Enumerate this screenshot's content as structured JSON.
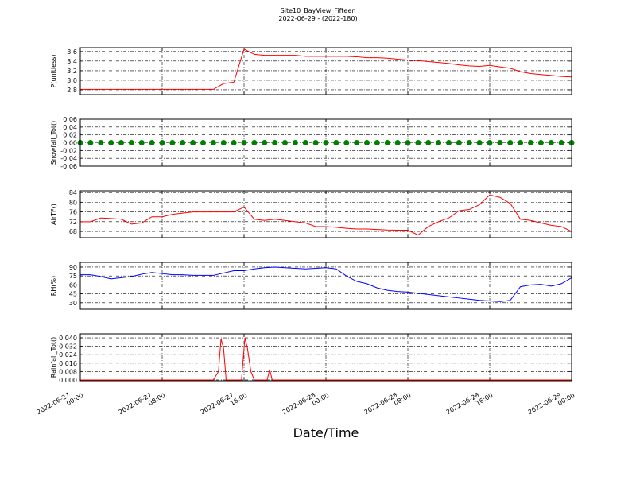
{
  "title": "Site10_BayView_Fifteen",
  "subtitle": "2022-06-29 - (2022-180)",
  "x_axis": {
    "label": "Date/Time",
    "xlim": [
      "2022-06-27 00:00",
      "2022-06-29 00:00"
    ],
    "xticks": [
      "2022-06-27 00:00",
      "2022-06-27 08:00",
      "2022-06-27 16:00",
      "2022-06-28 00:00",
      "2022-06-28 08:00",
      "2022-06-28 16:00",
      "2022-06-29 00:00"
    ]
  },
  "chart_data": [
    {
      "type": "line",
      "ylabel": "P(unitless)",
      "ylim": [
        2.7,
        3.68
      ],
      "yticks": [
        {
          "value": 2.8,
          "label": "2.8"
        },
        {
          "value": 3.0,
          "label": "3.0"
        },
        3.2,
        3.4,
        3.6
      ],
      "grid": true,
      "x": [
        "2022-06-27 00:00",
        "2022-06-27 01:00",
        "2022-06-27 02:00",
        "2022-06-27 03:00",
        "2022-06-27 04:00",
        "2022-06-27 05:00",
        "2022-06-27 06:00",
        "2022-06-27 07:00",
        "2022-06-27 08:00",
        "2022-06-27 09:00",
        "2022-06-27 10:00",
        "2022-06-27 11:00",
        "2022-06-27 12:00",
        "2022-06-27 13:00",
        "2022-06-27 14:00",
        "2022-06-27 15:00",
        "2022-06-27 16:00",
        "2022-06-27 17:00",
        "2022-06-27 18:00",
        "2022-06-27 19:00",
        "2022-06-27 20:00",
        "2022-06-27 21:00",
        "2022-06-27 22:00",
        "2022-06-27 23:00",
        "2022-06-28 00:00",
        "2022-06-28 01:00",
        "2022-06-28 02:00",
        "2022-06-28 03:00",
        "2022-06-28 04:00",
        "2022-06-28 05:00",
        "2022-06-28 06:00",
        "2022-06-28 07:00",
        "2022-06-28 08:00",
        "2022-06-28 09:00",
        "2022-06-28 10:00",
        "2022-06-28 11:00",
        "2022-06-28 12:00",
        "2022-06-28 13:00",
        "2022-06-28 14:00",
        "2022-06-28 15:00",
        "2022-06-28 16:00",
        "2022-06-28 17:00",
        "2022-06-28 18:00",
        "2022-06-28 19:00",
        "2022-06-28 20:00",
        "2022-06-28 21:00",
        "2022-06-28 22:00",
        "2022-06-28 23:00",
        "2022-06-29 00:00"
      ],
      "series": [
        {
          "color": "#ff0000",
          "values": [
            2.81,
            2.81,
            2.81,
            2.81,
            2.81,
            2.81,
            2.81,
            2.81,
            2.81,
            2.81,
            2.81,
            2.81,
            2.81,
            2.81,
            2.93,
            2.96,
            3.65,
            3.54,
            3.52,
            3.52,
            3.52,
            3.52,
            3.5,
            3.5,
            3.5,
            3.5,
            3.5,
            3.49,
            3.47,
            3.47,
            3.46,
            3.44,
            3.42,
            3.41,
            3.39,
            3.37,
            3.35,
            3.32,
            3.3,
            3.29,
            3.31,
            3.28,
            3.25,
            3.18,
            3.14,
            3.12,
            3.1,
            3.08,
            3.07
          ]
        }
      ]
    },
    {
      "type": "scatter",
      "ylabel": "Snowfall_Tot()",
      "ylim": [
        -0.06,
        0.06
      ],
      "yticks": [
        -0.06,
        -0.04,
        -0.02,
        {
          "value": 0,
          "label": "0.00"
        },
        0.02,
        0.04,
        0.06
      ],
      "grid": true,
      "x": [
        "2022-06-27 00:00",
        "2022-06-27 01:00",
        "2022-06-27 02:00",
        "2022-06-27 03:00",
        "2022-06-27 04:00",
        "2022-06-27 05:00",
        "2022-06-27 06:00",
        "2022-06-27 07:00",
        "2022-06-27 08:00",
        "2022-06-27 09:00",
        "2022-06-27 10:00",
        "2022-06-27 11:00",
        "2022-06-27 12:00",
        "2022-06-27 13:00",
        "2022-06-27 14:00",
        "2022-06-27 15:00",
        "2022-06-27 16:00",
        "2022-06-27 17:00",
        "2022-06-27 18:00",
        "2022-06-27 19:00",
        "2022-06-27 20:00",
        "2022-06-27 21:00",
        "2022-06-27 22:00",
        "2022-06-27 23:00",
        "2022-06-28 00:00",
        "2022-06-28 01:00",
        "2022-06-28 02:00",
        "2022-06-28 03:00",
        "2022-06-28 04:00",
        "2022-06-28 05:00",
        "2022-06-28 06:00",
        "2022-06-28 07:00",
        "2022-06-28 08:00",
        "2022-06-28 09:00",
        "2022-06-28 10:00",
        "2022-06-28 11:00",
        "2022-06-28 12:00",
        "2022-06-28 13:00",
        "2022-06-28 14:00",
        "2022-06-28 15:00",
        "2022-06-28 16:00",
        "2022-06-28 17:00",
        "2022-06-28 18:00",
        "2022-06-28 19:00",
        "2022-06-28 20:00",
        "2022-06-28 21:00",
        "2022-06-28 22:00",
        "2022-06-28 23:00",
        "2022-06-29 00:00"
      ],
      "series": [
        {
          "color": "#008000",
          "values": [
            0,
            0,
            0,
            0,
            0,
            0,
            0,
            0,
            0,
            0,
            0,
            0,
            0,
            0,
            0,
            0,
            0,
            0,
            0,
            0,
            0,
            0,
            0,
            0,
            0,
            0,
            0,
            0,
            0,
            0,
            0,
            0,
            0,
            0,
            0,
            0,
            0,
            0,
            0,
            0,
            0,
            0,
            0,
            0,
            0,
            0,
            0,
            0,
            0
          ]
        }
      ]
    },
    {
      "type": "line",
      "ylabel": "AirTF()",
      "ylim": [
        65.4,
        84.7
      ],
      "yticks": [
        68,
        72,
        76,
        80,
        84
      ],
      "grid": true,
      "x": [
        "2022-06-27 00:00",
        "2022-06-27 01:00",
        "2022-06-27 02:00",
        "2022-06-27 03:00",
        "2022-06-27 04:00",
        "2022-06-27 05:00",
        "2022-06-27 06:00",
        "2022-06-27 07:00",
        "2022-06-27 08:00",
        "2022-06-27 09:00",
        "2022-06-27 10:00",
        "2022-06-27 11:00",
        "2022-06-27 12:00",
        "2022-06-27 13:00",
        "2022-06-27 14:00",
        "2022-06-27 15:00",
        "2022-06-27 16:00",
        "2022-06-27 17:00",
        "2022-06-27 18:00",
        "2022-06-27 19:00",
        "2022-06-27 20:00",
        "2022-06-27 21:00",
        "2022-06-27 22:00",
        "2022-06-27 23:00",
        "2022-06-28 00:00",
        "2022-06-28 01:00",
        "2022-06-28 02:00",
        "2022-06-28 03:00",
        "2022-06-28 04:00",
        "2022-06-28 05:00",
        "2022-06-28 06:00",
        "2022-06-28 07:00",
        "2022-06-28 08:00",
        "2022-06-28 09:00",
        "2022-06-28 10:00",
        "2022-06-28 11:00",
        "2022-06-28 12:00",
        "2022-06-28 13:00",
        "2022-06-28 14:00",
        "2022-06-28 15:00",
        "2022-06-28 16:00",
        "2022-06-28 17:00",
        "2022-06-28 18:00",
        "2022-06-28 19:00",
        "2022-06-28 20:00",
        "2022-06-28 21:00",
        "2022-06-28 22:00",
        "2022-06-28 23:00",
        "2022-06-29 00:00"
      ],
      "series": [
        {
          "color": "#ff0000",
          "values": [
            72,
            72,
            73.5,
            73.3,
            73,
            71,
            71.5,
            74,
            74,
            75,
            75.5,
            76,
            76,
            76,
            76,
            76,
            78,
            73,
            72.5,
            73,
            72.5,
            72,
            71.5,
            70,
            70,
            69.7,
            69.3,
            69,
            69,
            68.8,
            68.6,
            68.5,
            68.5,
            66.5,
            70,
            72,
            73.5,
            76.5,
            77,
            79,
            83,
            82,
            79.5,
            73,
            72.5,
            71.5,
            70.5,
            70,
            68
          ]
        }
      ]
    },
    {
      "type": "line",
      "ylabel": "RH(%)",
      "ylim": [
        19,
        98
      ],
      "yticks": [
        30,
        45,
        60,
        75,
        90
      ],
      "grid": true,
      "x": [
        "2022-06-27 00:00",
        "2022-06-27 01:00",
        "2022-06-27 02:00",
        "2022-06-27 03:00",
        "2022-06-27 04:00",
        "2022-06-27 05:00",
        "2022-06-27 06:00",
        "2022-06-27 07:00",
        "2022-06-27 08:00",
        "2022-06-27 09:00",
        "2022-06-27 10:00",
        "2022-06-27 11:00",
        "2022-06-27 12:00",
        "2022-06-27 13:00",
        "2022-06-27 14:00",
        "2022-06-27 15:00",
        "2022-06-27 16:00",
        "2022-06-27 17:00",
        "2022-06-27 18:00",
        "2022-06-27 19:00",
        "2022-06-27 20:00",
        "2022-06-27 21:00",
        "2022-06-27 22:00",
        "2022-06-27 23:00",
        "2022-06-28 00:00",
        "2022-06-28 01:00",
        "2022-06-28 02:00",
        "2022-06-28 03:00",
        "2022-06-28 04:00",
        "2022-06-28 05:00",
        "2022-06-28 06:00",
        "2022-06-28 07:00",
        "2022-06-28 08:00",
        "2022-06-28 09:00",
        "2022-06-28 10:00",
        "2022-06-28 11:00",
        "2022-06-28 12:00",
        "2022-06-28 13:00",
        "2022-06-28 14:00",
        "2022-06-28 15:00",
        "2022-06-28 16:00",
        "2022-06-28 17:00",
        "2022-06-28 18:00",
        "2022-06-28 19:00",
        "2022-06-28 20:00",
        "2022-06-28 21:00",
        "2022-06-28 22:00",
        "2022-06-28 23:00",
        "2022-06-29 00:00"
      ],
      "series": [
        {
          "color": "#0000ff",
          "values": [
            77,
            77,
            74,
            70,
            72,
            74,
            78,
            81,
            79,
            77,
            77,
            76,
            76,
            76,
            80,
            84,
            84,
            87,
            89,
            90,
            89,
            88,
            87,
            88,
            89,
            87,
            75,
            66,
            62,
            55,
            51,
            49,
            48,
            46,
            44,
            42,
            40,
            38,
            36,
            34,
            33,
            32,
            34,
            57,
            60,
            61,
            58,
            62,
            72
          ]
        }
      ]
    },
    {
      "type": "line",
      "ylabel": "Rainfall_Tot()",
      "ylim": [
        -0.0008,
        0.0438
      ],
      "yticks": [
        {
          "value": 0,
          "label": "0.000"
        },
        {
          "value": 0.008,
          "label": "0.008"
        },
        {
          "value": 0.016,
          "label": "0.016"
        },
        {
          "value": 0.024,
          "label": "0.024"
        },
        {
          "value": 0.032,
          "label": "0.032"
        },
        {
          "value": 0.04,
          "label": "0.040"
        }
      ],
      "grid": true,
      "x": [
        "2022-06-27 00:00",
        "2022-06-27 13:00",
        "2022-06-27 13:30",
        "2022-06-27 13:45",
        "2022-06-27 14:00",
        "2022-06-27 14:15",
        "2022-06-27 15:45",
        "2022-06-27 16:05",
        "2022-06-27 16:20",
        "2022-06-27 16:40",
        "2022-06-27 17:00",
        "2022-06-27 18:15",
        "2022-06-27 18:30",
        "2022-06-27 18:45",
        "2022-06-29 00:00"
      ],
      "series": [
        {
          "color": "#ff0000",
          "values": [
            0,
            0,
            0.008,
            0.039,
            0.03,
            0,
            0,
            0.04,
            0.03,
            0.008,
            0,
            0,
            0.01,
            0,
            0
          ]
        }
      ]
    }
  ]
}
